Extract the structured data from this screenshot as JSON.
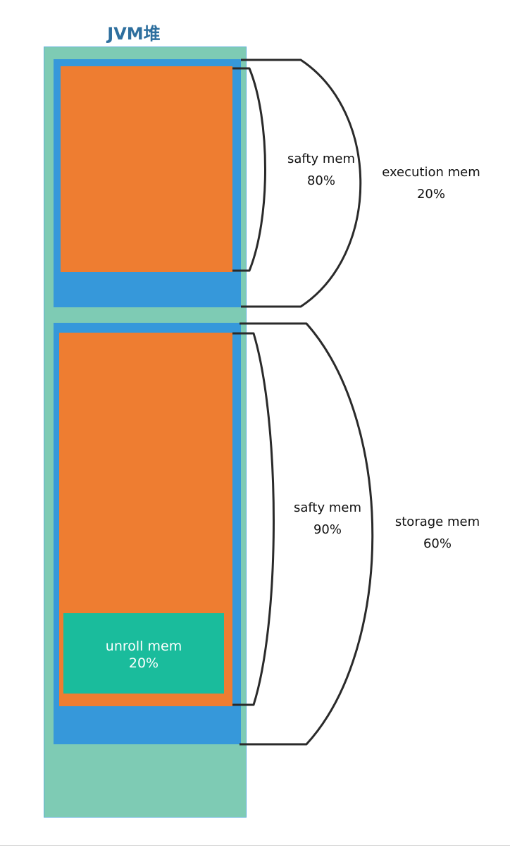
{
  "title": "JVM堆",
  "execution": {
    "label": "execution mem",
    "percent": "20%",
    "safety": {
      "label": "safty mem",
      "percent": "80%"
    }
  },
  "storage": {
    "label": "storage mem",
    "percent": "60%",
    "safety": {
      "label": "safty mem",
      "percent": "90%"
    },
    "unroll": {
      "label": "unroll mem",
      "percent": "20%"
    }
  },
  "colors": {
    "heap": "#7ecbb4",
    "region": "#3698da",
    "safety": "#ee7d31",
    "unroll": "#1abc9c",
    "title": "#2e6f9e"
  }
}
